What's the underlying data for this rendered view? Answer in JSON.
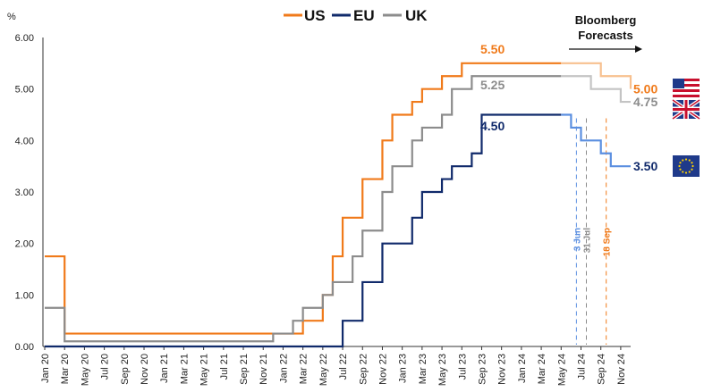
{
  "chart_data": {
    "type": "line",
    "ylabel": "%",
    "ylim": [
      0,
      6
    ],
    "yticks": [
      "0.00",
      "1.00",
      "2.00",
      "3.00",
      "4.00",
      "5.00",
      "6.00"
    ],
    "grid": false,
    "legend_position": "top-center",
    "x_tick_labels": [
      "Jan 20",
      "Mar 20",
      "May 20",
      "Jul 20",
      "Sep 20",
      "Nov 20",
      "Jan 21",
      "Mar 21",
      "May 21",
      "Jul 21",
      "Sep 21",
      "Nov 21",
      "Jan 22",
      "Mar 22",
      "May 22",
      "Jul 22",
      "Sep 22",
      "Nov 22",
      "Jan 23",
      "Mar 23",
      "May 23",
      "Jul 23",
      "Sep 23",
      "Nov 23",
      "Jan 24",
      "Mar 24",
      "May 24",
      "Jul 24",
      "Sep 24",
      "Nov 24"
    ],
    "series": [
      {
        "name": "US",
        "color": "#f07a1a",
        "forecast_color": "#f7c08f",
        "steps": [
          [
            "Jan 20",
            1.75
          ],
          [
            "Mar 20",
            1.25
          ],
          [
            "Mar 20",
            0.25
          ],
          [
            "Mar 22",
            0.5
          ],
          [
            "May 22",
            1.0
          ],
          [
            "Jun 22",
            1.75
          ],
          [
            "Jul 22",
            2.5
          ],
          [
            "Sep 22",
            3.25
          ],
          [
            "Nov 22",
            4.0
          ],
          [
            "Dec 22",
            4.5
          ],
          [
            "Feb 23",
            4.75
          ],
          [
            "Mar 23",
            5.0
          ],
          [
            "May 23",
            5.25
          ],
          [
            "Jul 23",
            5.5
          ]
        ],
        "forecast_steps": [
          [
            "Jun 24",
            5.5
          ],
          [
            "Sep 24",
            5.25
          ],
          [
            "Dec 24",
            5.0
          ]
        ],
        "end": "Dec 24",
        "peak_label": "5.50",
        "end_label": "5.00"
      },
      {
        "name": "EU",
        "color": "#102a6b",
        "forecast_color": "#5b8fe0",
        "steps": [
          [
            "Jan 20",
            0.0
          ],
          [
            "Jul 22",
            0.5
          ],
          [
            "Sep 22",
            1.25
          ],
          [
            "Nov 22",
            2.0
          ],
          [
            "Feb 23",
            2.5
          ],
          [
            "Mar 23",
            3.0
          ],
          [
            "May 23",
            3.25
          ],
          [
            "Jun 23",
            3.5
          ],
          [
            "Aug 23",
            3.75
          ],
          [
            "Sep 23",
            4.0
          ],
          [
            "Sep 23",
            4.5
          ]
        ],
        "forecast_steps": [
          [
            "Jun 24",
            4.25
          ],
          [
            "Jul 24",
            4.0
          ],
          [
            "Sep 24",
            3.75
          ],
          [
            "Oct 24",
            3.5
          ]
        ],
        "end": "Dec 24",
        "peak_label": "4.50",
        "end_label": "3.50"
      },
      {
        "name": "UK",
        "color": "#8c8c8c",
        "forecast_color": "#c4c4c4",
        "steps": [
          [
            "Jan 20",
            0.75
          ],
          [
            "Mar 20",
            0.25
          ],
          [
            "Mar 20",
            0.1
          ],
          [
            "Dec 21",
            0.25
          ],
          [
            "Feb 22",
            0.5
          ],
          [
            "Mar 22",
            0.75
          ],
          [
            "May 22",
            1.0
          ],
          [
            "Jun 22",
            1.25
          ],
          [
            "Aug 22",
            1.75
          ],
          [
            "Sep 22",
            2.25
          ],
          [
            "Nov 22",
            3.0
          ],
          [
            "Dec 22",
            3.5
          ],
          [
            "Feb 23",
            4.0
          ],
          [
            "Mar 23",
            4.25
          ],
          [
            "May 23",
            4.5
          ],
          [
            "Jun 23",
            5.0
          ],
          [
            "Aug 23",
            5.25
          ]
        ],
        "forecast_steps": [
          [
            "Aug 24",
            5.0
          ],
          [
            "Nov 24",
            4.75
          ]
        ],
        "end": "Dec 24",
        "peak_label": "5.25",
        "end_label": "4.75"
      }
    ],
    "forecast_start": "May 24",
    "annotations": [
      {
        "text": "3 Jun",
        "date": "Jun 24",
        "color": "#5b8fe0"
      },
      {
        "text": "31 Jul",
        "date": "Jul 24",
        "color": "#8c8c8c"
      },
      {
        "text": "18 Sep",
        "date": "Sep 24",
        "color": "#f07a1a"
      }
    ],
    "forecast_note": [
      "Bloomberg",
      "Forecasts"
    ]
  }
}
